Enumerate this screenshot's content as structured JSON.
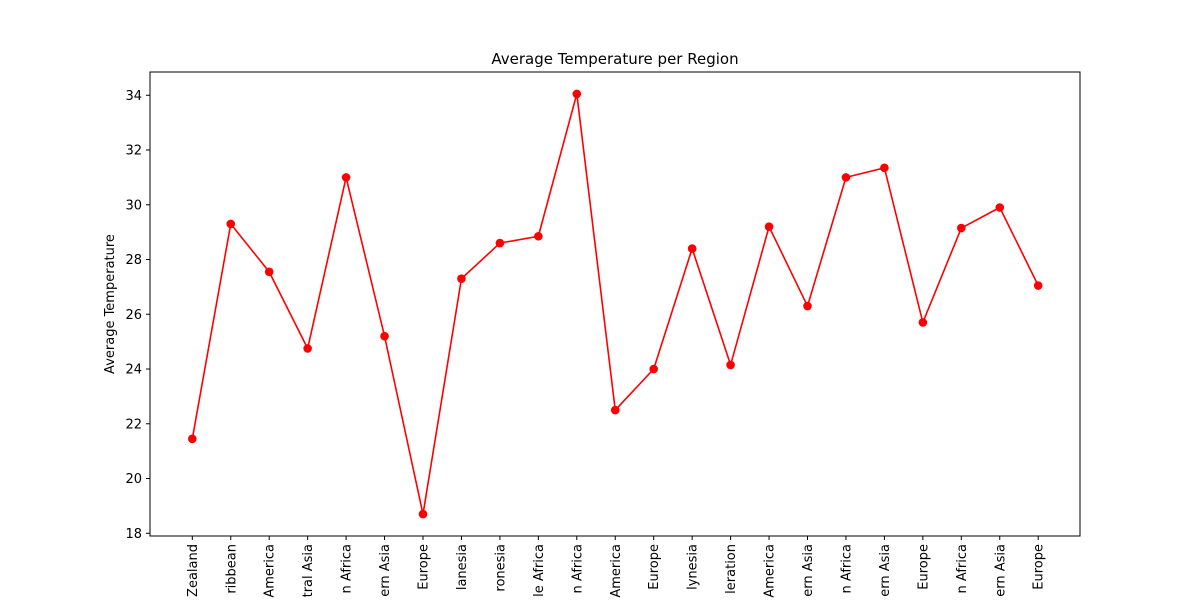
{
  "chart_data": {
    "type": "line",
    "title": "Average Temperature per Region",
    "xlabel": "",
    "ylabel": "Average Temperature",
    "categories": [
      "Zealand",
      "ribbean",
      "America",
      "tral Asia",
      "n Africa",
      "ern Asia",
      "Europe",
      "lanesia",
      "ronesia",
      "le Africa",
      "n Africa",
      "America",
      "Europe",
      "lynesia",
      "leration",
      "America",
      "ern Asia",
      "n Africa",
      "ern Asia",
      "Europe",
      "n Africa",
      "ern Asia",
      "Europe"
    ],
    "values": [
      21.45,
      29.3,
      27.55,
      24.75,
      31.0,
      25.2,
      18.7,
      27.3,
      28.6,
      28.85,
      34.05,
      22.5,
      24.0,
      28.4,
      24.15,
      29.2,
      26.3,
      31.0,
      31.35,
      25.7,
      29.15,
      29.9,
      27.05
    ],
    "ylim": [
      17.9,
      34.85
    ],
    "yticks": [
      18,
      20,
      22,
      24,
      26,
      28,
      30,
      32,
      34
    ],
    "grid": false,
    "line_color": "#ff0000",
    "marker": "circle"
  }
}
